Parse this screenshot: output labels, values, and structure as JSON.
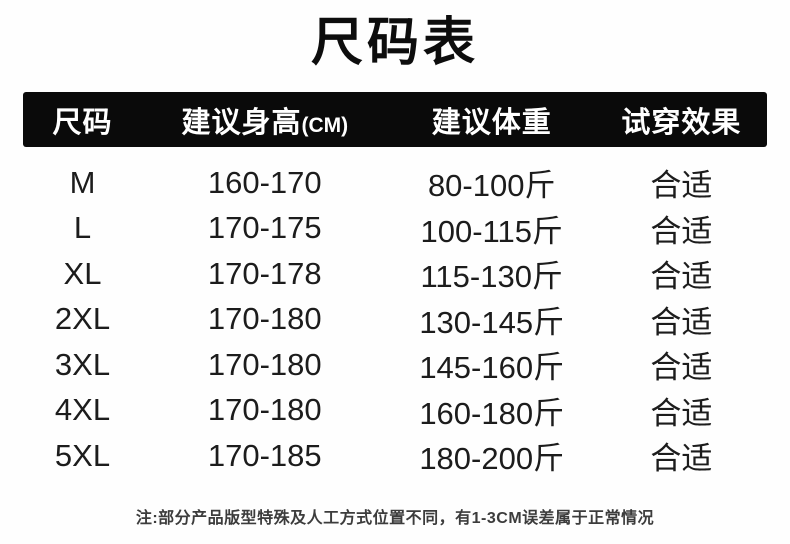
{
  "title": "尺码表",
  "table": {
    "headers": [
      "尺码",
      "建议身高",
      "建议体重",
      "试穿效果"
    ],
    "height_unit": "(CM)",
    "rows": [
      {
        "size": "M",
        "height": "160-170",
        "weight": "80-100斤",
        "effect": "合适"
      },
      {
        "size": "L",
        "height": "170-175",
        "weight": "100-115斤",
        "effect": "合适"
      },
      {
        "size": "XL",
        "height": "170-178",
        "weight": "115-130斤",
        "effect": "合适"
      },
      {
        "size": "2XL",
        "height": "170-180",
        "weight": "130-145斤",
        "effect": "合适"
      },
      {
        "size": "3XL",
        "height": "170-180",
        "weight": "145-160斤",
        "effect": "合适"
      },
      {
        "size": "4XL",
        "height": "170-180",
        "weight": "160-180斤",
        "effect": "合适"
      },
      {
        "size": "5XL",
        "height": "170-185",
        "weight": "180-200斤",
        "effect": "合适"
      }
    ]
  },
  "note": "注:部分产品版型特殊及人工方式位置不同，有1-3CM误差属于正常情况",
  "colors": {
    "background": "#fefefe",
    "header_bg": "#0a0a0a",
    "header_text": "#ffffff",
    "body_text": "#1c1c1c",
    "note_text": "#3c3c3c"
  }
}
